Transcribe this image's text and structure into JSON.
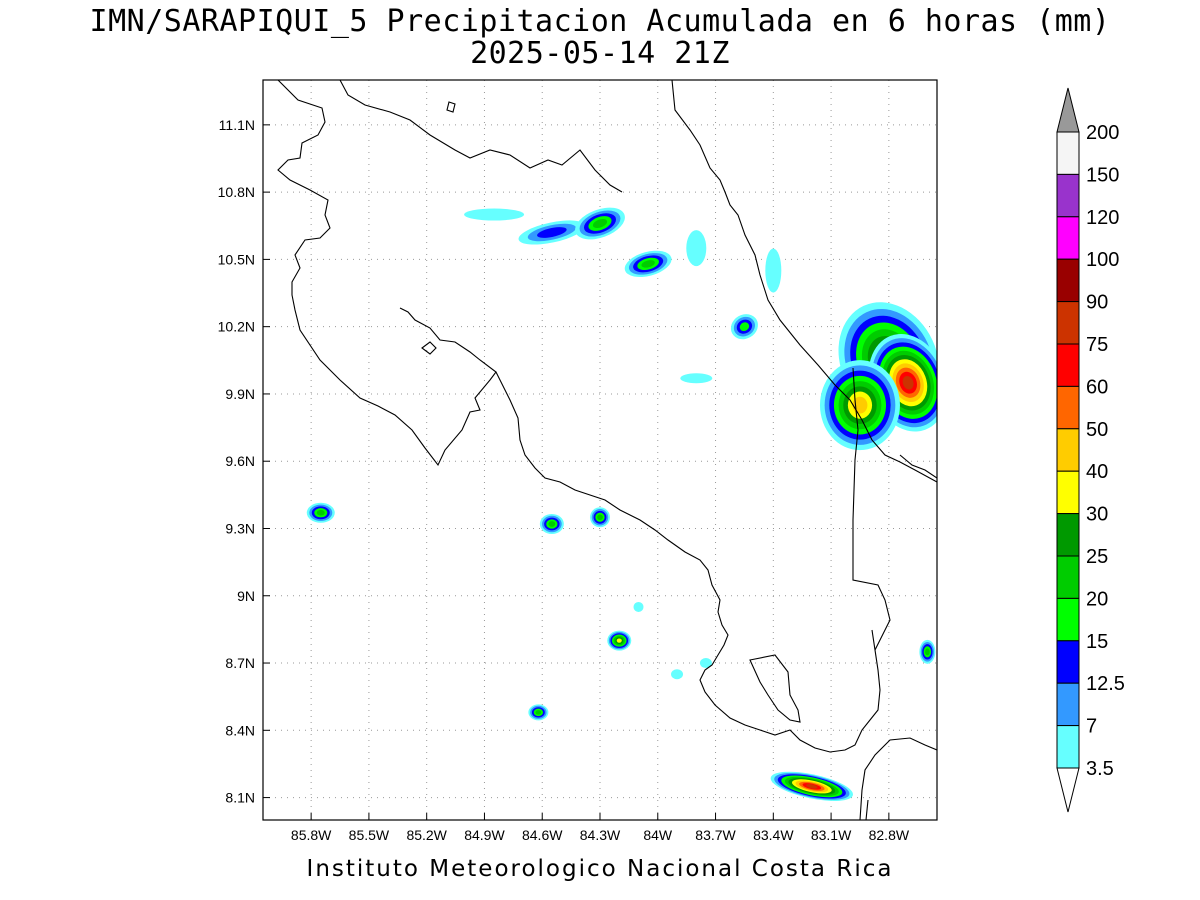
{
  "title": {
    "line1": "IMN/SARAPIQUI_5 Precipitacion Acumulada en 6 horas (mm)",
    "line2": "2025-05-14 21Z"
  },
  "footer": "Instituto Meteorologico Nacional Costa Rica",
  "map": {
    "type": "precipitation-contour-map",
    "lon_range": [
      -86.05,
      -82.55
    ],
    "lat_range": [
      8.0,
      11.3
    ],
    "x_tick_labels": [
      "85.8W",
      "85.5W",
      "85.2W",
      "84.9W",
      "84.6W",
      "84.3W",
      "84W",
      "83.7W",
      "83.4W",
      "83.1W",
      "82.8W"
    ],
    "y_tick_labels": [
      "11.1N",
      "10.8N",
      "10.5N",
      "10.2N",
      "9.9N",
      "9.6N",
      "9.3N",
      "9N",
      "8.7N",
      "8.4N",
      "8.1N"
    ],
    "grid": true,
    "precip_features": [
      {
        "lon": -84.55,
        "lat": 10.62,
        "peak_mm": 12.5
      },
      {
        "lon": -84.3,
        "lat": 10.66,
        "peak_mm": 20
      },
      {
        "lon": -84.05,
        "lat": 10.48,
        "peak_mm": 20
      },
      {
        "lon": -83.55,
        "lat": 10.2,
        "peak_mm": 15
      },
      {
        "lon": -82.8,
        "lat": 10.05,
        "peak_mm": 40
      },
      {
        "lon": -82.7,
        "lat": 9.95,
        "peak_mm": 75
      },
      {
        "lon": -82.95,
        "lat": 9.85,
        "peak_mm": 40
      },
      {
        "lon": -85.75,
        "lat": 9.37,
        "peak_mm": 20
      },
      {
        "lon": -84.55,
        "lat": 9.32,
        "peak_mm": 20
      },
      {
        "lon": -84.3,
        "lat": 9.35,
        "peak_mm": 20
      },
      {
        "lon": -84.2,
        "lat": 8.8,
        "peak_mm": 30
      },
      {
        "lon": -84.62,
        "lat": 8.48,
        "peak_mm": 20
      },
      {
        "lon": -83.2,
        "lat": 8.15,
        "peak_mm": 75
      },
      {
        "lon": -82.6,
        "lat": 8.75,
        "peak_mm": 20
      }
    ]
  },
  "colorbar": {
    "labels": [
      "200",
      "150",
      "120",
      "100",
      "90",
      "75",
      "60",
      "50",
      "40",
      "30",
      "25",
      "20",
      "15",
      "12.5",
      "7",
      "3.5"
    ],
    "colors": [
      "#f5f5f5",
      "#9933cc",
      "#ff00ff",
      "#990000",
      "#cc3300",
      "#ff0000",
      "#ff6600",
      "#ffcc00",
      "#ffff00",
      "#009900",
      "#00cc00",
      "#00ff00",
      "#0000ff",
      "#3399ff",
      "#66ffff"
    ],
    "top_arrow_color": "#999999",
    "bottom_arrow_color": "#ffffff"
  },
  "chart_data": {
    "type": "heatmap",
    "title": "IMN/SARAPIQUI_5 Precipitacion Acumulada en 6 horas (mm)",
    "subtitle": "2025-05-14 21Z",
    "xlabel": "",
    "ylabel": "",
    "xlim": [
      -86.05,
      -82.55
    ],
    "ylim": [
      8.0,
      11.3
    ],
    "levels_mm": [
      3.5,
      7,
      12.5,
      15,
      20,
      25,
      30,
      40,
      50,
      60,
      75,
      90,
      100,
      120,
      150,
      200
    ]
  }
}
